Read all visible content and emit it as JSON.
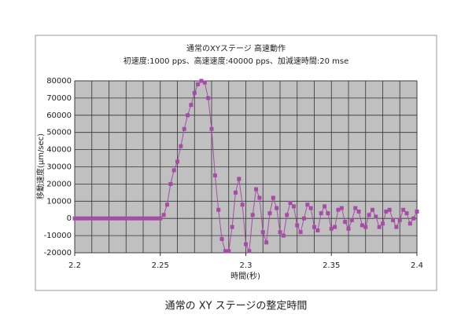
{
  "chart_data": {
    "type": "line",
    "title": "通常のXYステージ 高速動作",
    "subtitle": "初速度:1000 pps、高速速度:40000 pps、加減速時間:20 mse",
    "xlabel": "時間(秒)",
    "ylabel": "移動速度(μm/sec)",
    "caption": "通常の XY ステージの整定時間",
    "xlim": [
      2.2,
      2.4
    ],
    "xticks": [
      2.2,
      2.25,
      2.3,
      2.35,
      2.4
    ],
    "x_grid": [
      2.2,
      2.21,
      2.22,
      2.23,
      2.24,
      2.25,
      2.26,
      2.27,
      2.28,
      2.29,
      2.3,
      2.31,
      2.32,
      2.33,
      2.34,
      2.35,
      2.36,
      2.37,
      2.38,
      2.39,
      2.4
    ],
    "ylim": [
      -20000,
      80000
    ],
    "yticks": [
      -20000,
      -10000,
      0,
      10000,
      20000,
      30000,
      40000,
      50000,
      60000,
      70000,
      80000
    ],
    "grid": true,
    "x": [
      2.2,
      2.202,
      2.204,
      2.206,
      2.208,
      2.21,
      2.212,
      2.214,
      2.216,
      2.218,
      2.22,
      2.222,
      2.224,
      2.226,
      2.228,
      2.23,
      2.232,
      2.234,
      2.236,
      2.238,
      2.24,
      2.242,
      2.244,
      2.246,
      2.248,
      2.25,
      2.252,
      2.254,
      2.256,
      2.258,
      2.26,
      2.262,
      2.264,
      2.266,
      2.268,
      2.27,
      2.272,
      2.274,
      2.276,
      2.278,
      2.28,
      2.282,
      2.284,
      2.286,
      2.288,
      2.29,
      2.292,
      2.294,
      2.296,
      2.298,
      2.3,
      2.302,
      2.304,
      2.306,
      2.308,
      2.31,
      2.312,
      2.314,
      2.316,
      2.318,
      2.32,
      2.322,
      2.324,
      2.326,
      2.328,
      2.33,
      2.332,
      2.334,
      2.336,
      2.338,
      2.34,
      2.342,
      2.344,
      2.346,
      2.348,
      2.35,
      2.352,
      2.354,
      2.356,
      2.358,
      2.36,
      2.362,
      2.364,
      2.366,
      2.368,
      2.37,
      2.372,
      2.374,
      2.376,
      2.378,
      2.38,
      2.382,
      2.384,
      2.386,
      2.388,
      2.39,
      2.392,
      2.394,
      2.396,
      2.398,
      2.4
    ],
    "series": [
      {
        "color": "#a64ca6",
        "values": [
          0,
          0,
          0,
          0,
          0,
          0,
          0,
          0,
          0,
          0,
          0,
          0,
          0,
          0,
          0,
          0,
          0,
          0,
          0,
          0,
          0,
          0,
          0,
          0,
          0,
          0,
          2000,
          8000,
          20000,
          28000,
          33000,
          42000,
          52000,
          60000,
          66000,
          73000,
          78000,
          80000,
          79000,
          70000,
          52000,
          25000,
          5000,
          -12000,
          -19000,
          -19000,
          -5000,
          15000,
          23000,
          8000,
          -15000,
          -19000,
          2000,
          17000,
          12000,
          -8000,
          -14000,
          3000,
          12000,
          6000,
          -8000,
          -10000,
          2000,
          9000,
          7000,
          -4000,
          -8000,
          0,
          8000,
          6000,
          -5000,
          -7000,
          3000,
          7000,
          3000,
          -6000,
          -5000,
          5000,
          6000,
          -2000,
          -6000,
          -1000,
          6000,
          4000,
          -4000,
          -5000,
          2000,
          5000,
          1000,
          -5000,
          -3000,
          4000,
          5000,
          -1000,
          -5000,
          -1000,
          5000,
          3000,
          -3000,
          0,
          4000
        ]
      }
    ]
  }
}
